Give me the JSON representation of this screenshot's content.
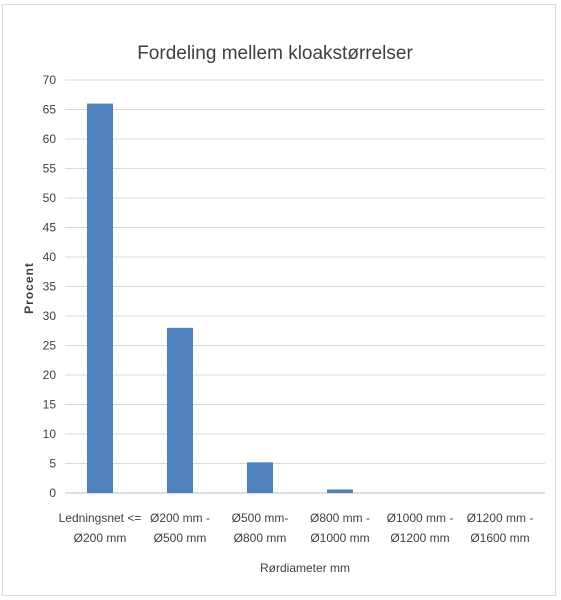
{
  "chart_data": {
    "type": "bar",
    "title": "Fordeling mellem kloakstørrelser",
    "xlabel": "Rørdiameter mm",
    "ylabel": "Procent",
    "ylim": [
      0,
      70
    ],
    "yticks": [
      0,
      5,
      10,
      15,
      20,
      25,
      30,
      35,
      40,
      45,
      50,
      55,
      60,
      65,
      70
    ],
    "grid": true,
    "legend": "none",
    "bar_color": "#4f81bd",
    "gridline_color": "#d9d9d9",
    "categories": [
      [
        "Ledningsnet <=",
        "Ø200 mm"
      ],
      [
        "Ø200 mm -",
        "Ø500 mm"
      ],
      [
        "Ø500 mm-",
        "Ø800 mm"
      ],
      [
        "Ø800 mm -",
        "Ø1000 mm"
      ],
      [
        "Ø1000 mm -",
        "Ø1200 mm"
      ],
      [
        "Ø1200 mm -",
        "Ø1600 mm"
      ]
    ],
    "values": [
      66,
      28,
      5.2,
      0.6,
      0,
      0
    ]
  }
}
